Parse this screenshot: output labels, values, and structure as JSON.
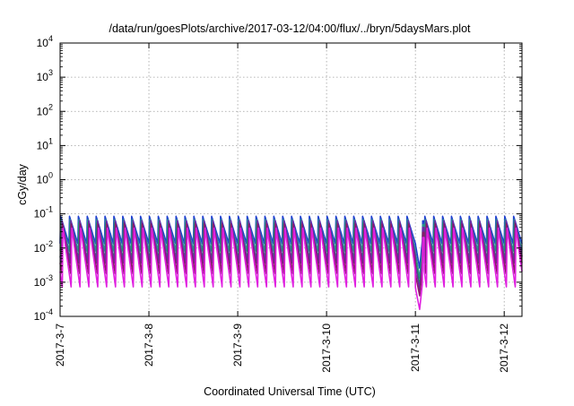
{
  "chart_data": {
    "type": "line",
    "title": "/data/run/goesPlots/archive/2017-03-12/04:00/flux/../bryn/5daysMars.plot",
    "xlabel": "Coordinated Universal Time (UTC)",
    "ylabel": "cGy/day",
    "yscale": "log",
    "xlim": [
      0,
      5.2
    ],
    "ylim": [
      0.0001,
      10000
    ],
    "grid": true,
    "x_ticks": [
      {
        "value": 0,
        "label": "2017-3-7"
      },
      {
        "value": 1,
        "label": "2017-3-8"
      },
      {
        "value": 2,
        "label": "2017-3-9"
      },
      {
        "value": 3,
        "label": "2017-3-10"
      },
      {
        "value": 4,
        "label": "2017-3-11"
      },
      {
        "value": 5,
        "label": "2017-3-12"
      }
    ],
    "y_ticks": [
      {
        "value": 0.0001,
        "base": "10",
        "exp": "-4"
      },
      {
        "value": 0.001,
        "base": "10",
        "exp": "-3"
      },
      {
        "value": 0.01,
        "base": "10",
        "exp": "-2"
      },
      {
        "value": 0.1,
        "base": "10",
        "exp": "-1"
      },
      {
        "value": 1,
        "base": "10",
        "exp": "0"
      },
      {
        "value": 10,
        "base": "10",
        "exp": "1"
      },
      {
        "value": 100,
        "base": "10",
        "exp": "2"
      },
      {
        "value": 1000,
        "base": "10",
        "exp": "3"
      },
      {
        "value": 10000,
        "base": "10",
        "exp": "4"
      }
    ],
    "pattern": {
      "period_days": 0.1,
      "peak_offsets": [
        0.0,
        0.005,
        0.01,
        0.015,
        0.02,
        0.025,
        0.03
      ],
      "gap": {
        "start": 4.0,
        "end": 4.08
      }
    },
    "series": [
      {
        "color": "#1f3fd0",
        "peak": 0.085,
        "trough": 0.0135,
        "min_at_gap": 0.0026
      },
      {
        "color": "#2b8f8f",
        "peak": 0.07,
        "trough": 0.008,
        "min_at_gap": 0.0013
      },
      {
        "color": "#1a9a40",
        "peak": 0.055,
        "trough": 0.0045,
        "min_at_gap": 0.0008
      },
      {
        "color": "#6a2aa8",
        "peak": 0.065,
        "trough": 0.0035,
        "min_at_gap": 0.0006
      },
      {
        "color": "#8a1a6a",
        "peak": 0.05,
        "trough": 0.0018,
        "min_at_gap": 0.0004
      },
      {
        "color": "#e020e0",
        "peak": 0.04,
        "trough": 0.0007,
        "min_at_gap": 0.00016
      }
    ]
  }
}
